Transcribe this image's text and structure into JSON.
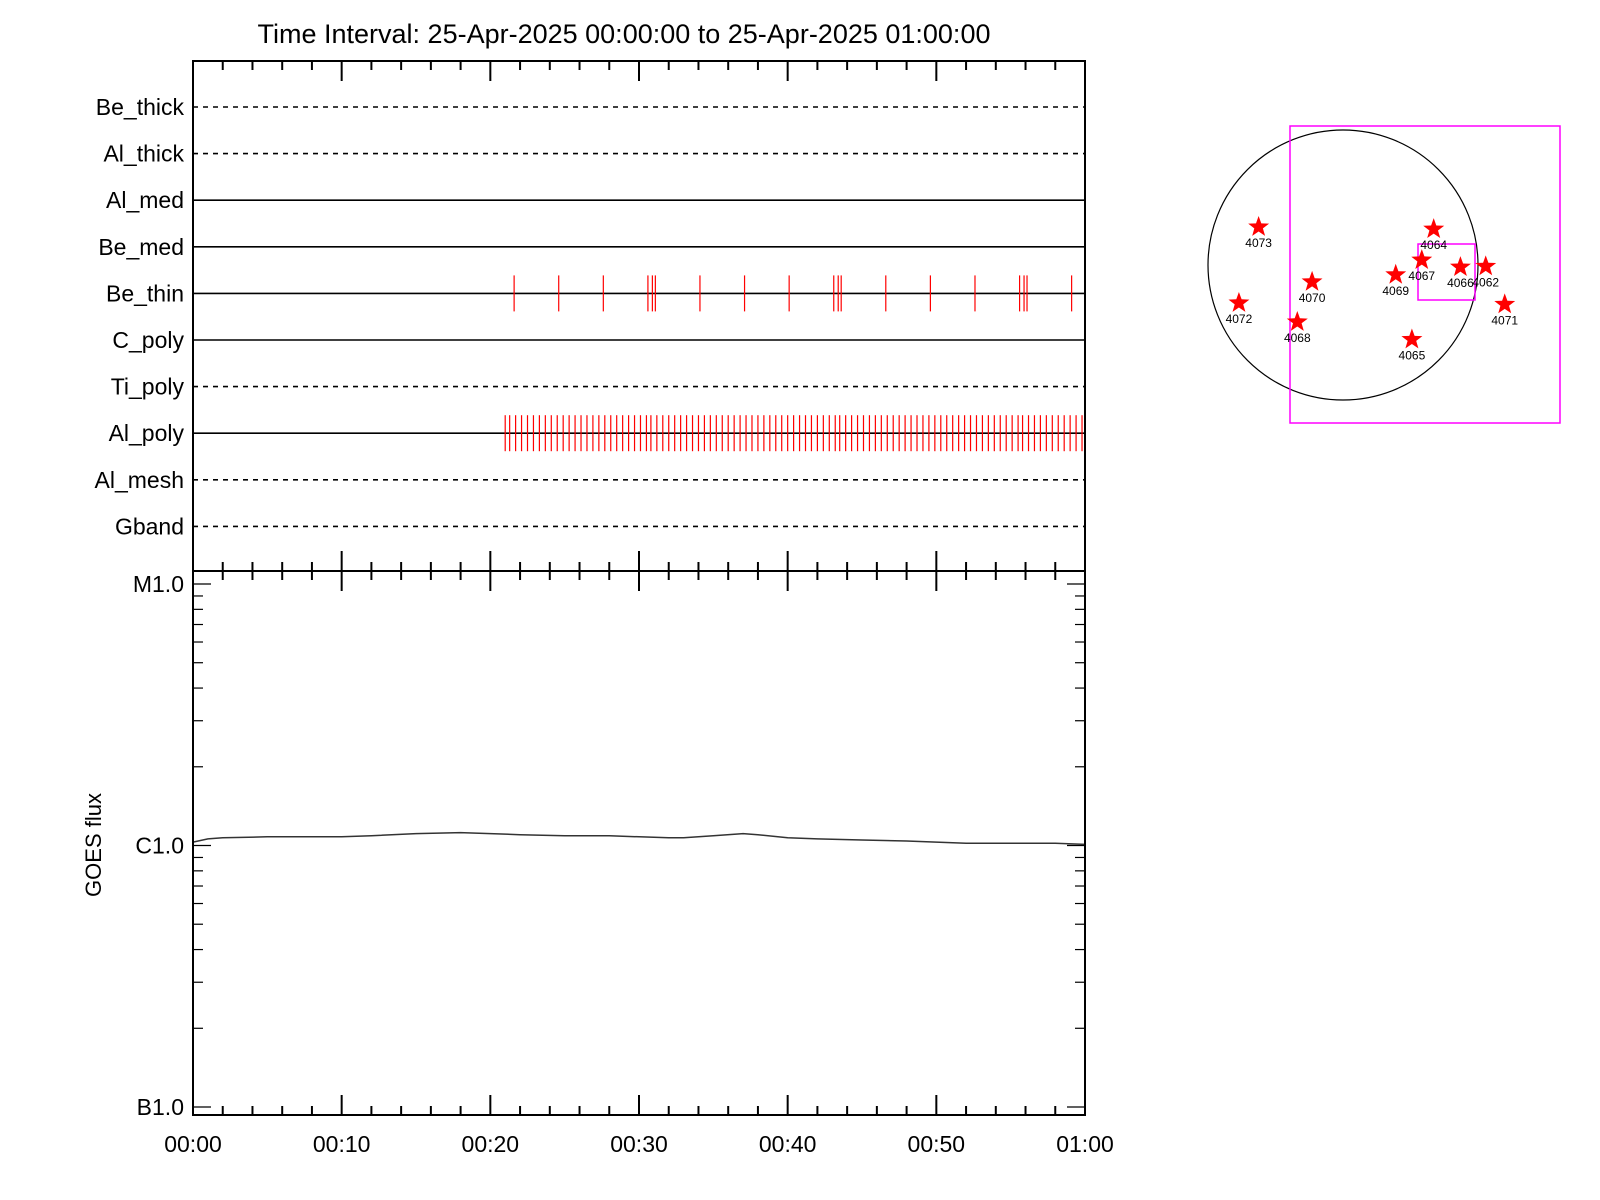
{
  "title": "Time Interval: 25-Apr-2025 00:00:00 to 25-Apr-2025 01:00:00",
  "colors": {
    "axis": "#000000",
    "exposure_marker": "#ff0000",
    "goes_curve": "#333333",
    "fov_box": "#ff00ff",
    "star": "#ff0000",
    "disk": "#000000"
  },
  "chart_data": [
    {
      "type": "timeline",
      "name": "filter-timeline",
      "x": {
        "unit": "minutes after 00:00",
        "min": 0,
        "max": 60
      },
      "ylabel": "",
      "rows": [
        {
          "name": "Be_thick",
          "line": "dashed",
          "events": []
        },
        {
          "name": "Al_thick",
          "line": "dashed",
          "events": []
        },
        {
          "name": "Al_med",
          "line": "solid",
          "events": []
        },
        {
          "name": "Be_med",
          "line": "solid",
          "events": []
        },
        {
          "name": "Be_thin",
          "line": "solid",
          "events": [
            21.6,
            24.6,
            27.6,
            30.6,
            30.9,
            31.1,
            34.1,
            37.1,
            40.1,
            43.1,
            43.4,
            43.6,
            46.6,
            49.6,
            52.6,
            55.6,
            55.9,
            56.1,
            59.1
          ]
        },
        {
          "name": "C_poly",
          "line": "solid",
          "events": []
        },
        {
          "name": "Ti_poly",
          "line": "dashed",
          "events": []
        },
        {
          "name": "Al_poly",
          "line": "solid",
          "events": [
            21.0,
            21.3,
            21.7,
            22.1,
            22.5,
            22.9,
            23.3,
            23.7,
            24.1,
            24.5,
            24.9,
            25.3,
            25.7,
            26.1,
            26.5,
            26.9,
            27.3,
            27.7,
            28.1,
            28.5,
            28.9,
            29.3,
            29.7,
            30.1,
            30.5,
            30.8,
            31.2,
            31.6,
            32.0,
            32.4,
            32.8,
            33.2,
            33.6,
            34.0,
            34.4,
            34.8,
            35.2,
            35.6,
            36.0,
            36.4,
            36.8,
            37.2,
            37.6,
            38.0,
            38.4,
            38.8,
            39.2,
            39.6,
            40.0,
            40.4,
            40.8,
            41.2,
            41.6,
            42.0,
            42.4,
            42.8,
            43.2,
            43.5,
            43.9,
            44.3,
            44.7,
            45.1,
            45.5,
            45.9,
            46.3,
            46.7,
            47.1,
            47.5,
            47.9,
            48.3,
            48.7,
            49.1,
            49.5,
            49.9,
            50.3,
            50.7,
            51.1,
            51.5,
            51.9,
            52.3,
            52.7,
            53.1,
            53.5,
            53.9,
            54.3,
            54.7,
            55.1,
            55.5,
            55.8,
            56.2,
            56.6,
            57.0,
            57.4,
            57.8,
            58.2,
            58.6,
            59.0,
            59.4,
            59.8
          ]
        },
        {
          "name": "Al_mesh",
          "line": "dashed",
          "events": []
        },
        {
          "name": "Gband",
          "line": "dashed",
          "events": []
        }
      ]
    },
    {
      "type": "line",
      "name": "goes-flux",
      "ylabel": "GOES flux",
      "xlabel": "",
      "y_scale": "log",
      "ylim": [
        1e-07,
        1e-05
      ],
      "y_ticks": [
        {
          "value": 1e-05,
          "label": "M1.0"
        },
        {
          "value": 1e-06,
          "label": "C1.0"
        },
        {
          "value": 1e-07,
          "label": "B1.0"
        }
      ],
      "x_ticks": [
        "00:00",
        "00:10",
        "00:20",
        "00:30",
        "00:40",
        "00:50",
        "01:00"
      ],
      "xlim": [
        0,
        60
      ],
      "series": [
        {
          "x": [
            0,
            1,
            2,
            5,
            10,
            12,
            15,
            18,
            20,
            22,
            25,
            28,
            30,
            32,
            33,
            35,
            37,
            38,
            40,
            42,
            45,
            48,
            50,
            52,
            55,
            58,
            60
          ],
          "y": [
            1.03e-06,
            1.06e-06,
            1.07e-06,
            1.08e-06,
            1.08e-06,
            1.09e-06,
            1.11e-06,
            1.12e-06,
            1.11e-06,
            1.1e-06,
            1.09e-06,
            1.09e-06,
            1.08e-06,
            1.07e-06,
            1.07e-06,
            1.09e-06,
            1.11e-06,
            1.1e-06,
            1.07e-06,
            1.06e-06,
            1.05e-06,
            1.04e-06,
            1.03e-06,
            1.02e-06,
            1.02e-06,
            1.02e-06,
            1.01e-06
          ]
        }
      ]
    }
  ],
  "solar_map": {
    "regions": [
      {
        "label": "4073",
        "x": -600,
        "y": 270
      },
      {
        "label": "4072",
        "x": -740,
        "y": -270
      },
      {
        "label": "4070",
        "x": -220,
        "y": -120
      },
      {
        "label": "4068",
        "x": -325,
        "y": -405
      },
      {
        "label": "4069",
        "x": 375,
        "y": -70
      },
      {
        "label": "4067",
        "x": 560,
        "y": 35
      },
      {
        "label": "4064",
        "x": 645,
        "y": 255
      },
      {
        "label": "4065",
        "x": 490,
        "y": -530
      },
      {
        "label": "4066",
        "x": 835,
        "y": -15
      },
      {
        "label": "4062",
        "x": 1015,
        "y": -10
      },
      {
        "label": "4071",
        "x": 1150,
        "y": -280
      }
    ]
  }
}
